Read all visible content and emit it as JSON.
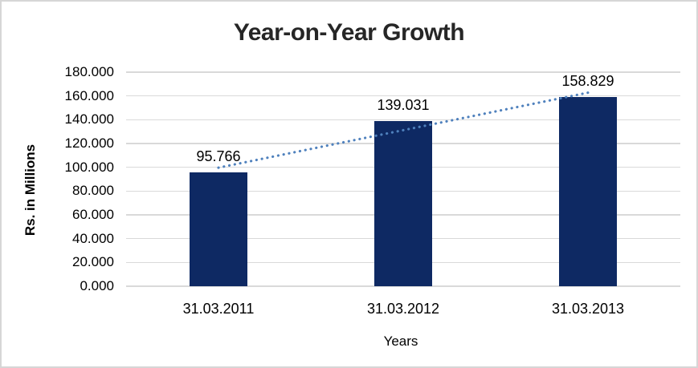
{
  "chart_data": {
    "type": "bar",
    "title": "Year-on-Year Growth",
    "xlabel": "Years",
    "ylabel": "Rs. in Millions",
    "categories": [
      "31.03.2011",
      "31.03.2012",
      "31.03.2013"
    ],
    "values": [
      95.766,
      139.031,
      158.829
    ],
    "data_labels": [
      "95.766",
      "139.031",
      "158.829"
    ],
    "ylim": [
      0,
      180
    ],
    "ytick_step": 20,
    "ytick_labels": [
      "0.000",
      "20.000",
      "40.000",
      "60.000",
      "80.000",
      "100.000",
      "120.000",
      "140.000",
      "160.000",
      "180.000"
    ],
    "grid": true,
    "legend": "none",
    "trendline": {
      "type": "linear",
      "style": "dotted",
      "endpoint_values": [
        99.683,
        162.746
      ]
    },
    "colors": {
      "bar": "#0E2963",
      "trendline": "#4F81BD",
      "gridline": "#D9D9D9",
      "title": "#262626",
      "text": "#000000",
      "border": "#D6D6D6",
      "background": "#FFFFFF"
    }
  }
}
